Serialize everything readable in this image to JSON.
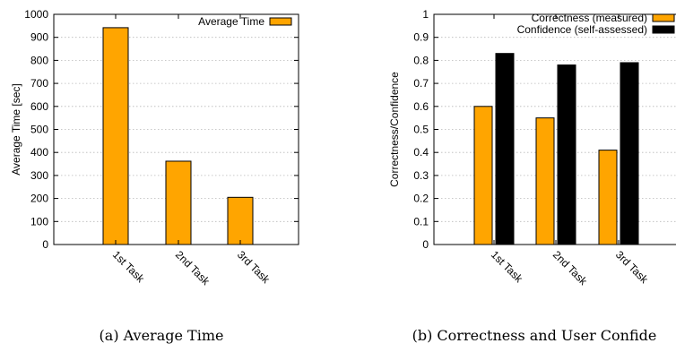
{
  "chart_data": [
    {
      "type": "bar",
      "categories": [
        "1st Task",
        "2nd Task",
        "3rd Task"
      ],
      "series": [
        {
          "name": "Average Time",
          "values": [
            942,
            362,
            205
          ],
          "color": "#FFA500"
        }
      ],
      "xlabel": "",
      "ylabel": "Average Time [sec]",
      "ylim": [
        0,
        1000
      ],
      "yticks": [
        "0",
        "100",
        "200",
        "300",
        "400",
        "500",
        "600",
        "700",
        "800",
        "900",
        "1000"
      ],
      "grid": true,
      "legend": "top-right",
      "caption": "(a) Average Time"
    },
    {
      "type": "bar",
      "categories": [
        "1st Task",
        "2nd Task",
        "3rd Task"
      ],
      "series": [
        {
          "name": "Correctness (measured)",
          "values": [
            0.6,
            0.55,
            0.41
          ],
          "color": "#FFA500"
        },
        {
          "name": "Confidence (self-assessed)",
          "values": [
            0.83,
            0.78,
            0.79
          ],
          "color": "#000000"
        }
      ],
      "xlabel": "",
      "ylabel": "Correctness/Confidence",
      "ylim": [
        0,
        1
      ],
      "yticks": [
        "0",
        "0.1",
        "0.2",
        "0.3",
        "0.4",
        "0.5",
        "0.6",
        "0.7",
        "0.8",
        "0.9",
        "1"
      ],
      "grid": true,
      "legend": "top-right",
      "caption": "(b) Correctness and User Confide"
    }
  ]
}
